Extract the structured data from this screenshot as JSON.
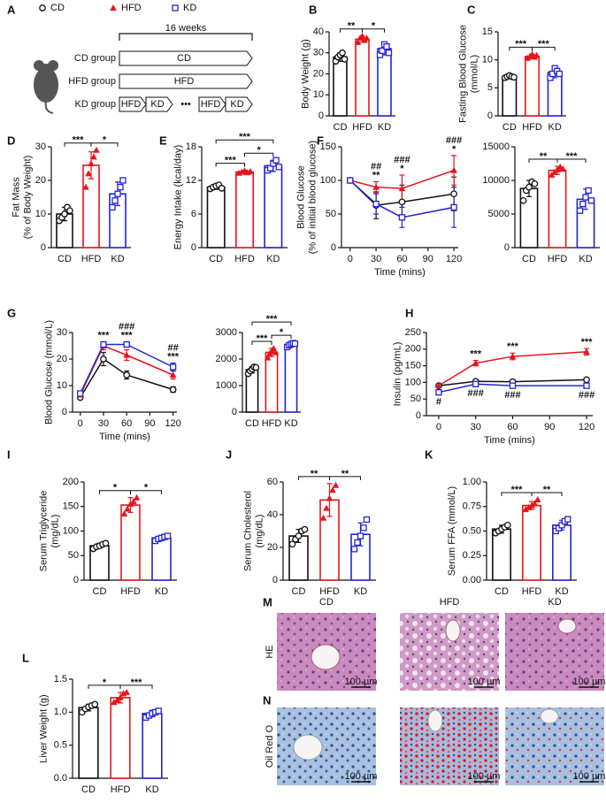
{
  "diagram": {
    "panel": "A",
    "legend": [
      {
        "name": "CD",
        "color": "#111111",
        "marker": "circle"
      },
      {
        "name": "HFD",
        "color": "#e8141c",
        "marker": "triangle"
      },
      {
        "name": "KD",
        "color": "#2323d8",
        "marker": "square"
      }
    ],
    "duration": "16 weeks",
    "groups": [
      {
        "label": "CD group",
        "color": "#111111",
        "steps": [
          {
            "label": "CD",
            "shape": "arrow"
          }
        ]
      },
      {
        "label": "HFD group",
        "color": "#e8141c",
        "steps": [
          {
            "label": "HFD",
            "shape": "arrow"
          }
        ]
      },
      {
        "label": "KD group",
        "color": "#2323d8",
        "steps": [
          {
            "label": "HFD",
            "shape": "arrow"
          },
          {
            "label": "KD",
            "shape": "arrow"
          },
          {
            "label": "•••",
            "shape": "text"
          },
          {
            "label": "HFD",
            "shape": "arrow"
          },
          {
            "label": "KD",
            "shape": "arrow"
          }
        ]
      }
    ]
  },
  "histology": {
    "panels": [
      "M",
      "N"
    ],
    "rows": [
      "HE",
      "Oil Red O"
    ],
    "columns": [
      "CD",
      "HFD",
      "KD"
    ],
    "scale_bar": "100 µm"
  },
  "chart_data": [
    {
      "type": "bar",
      "panel": "B",
      "ylabel": [
        "Body Weight (g)"
      ],
      "categories": [
        "CD",
        "HFD",
        "KD"
      ],
      "colors": [
        "#111111",
        "#e8141c",
        "#2323d8"
      ],
      "markers": [
        "circle",
        "triangle",
        "square"
      ],
      "values": [
        28,
        36.5,
        32
      ],
      "errors": [
        2,
        1.5,
        3
      ],
      "points": [
        [
          26,
          28,
          29,
          30,
          27
        ],
        [
          35,
          37,
          38,
          36,
          37
        ],
        [
          29,
          31,
          34,
          33,
          30
        ]
      ],
      "ylim": [
        0,
        40
      ],
      "yticks": [
        0,
        10,
        20,
        30,
        40
      ],
      "significance": [
        {
          "pair": [
            "CD",
            "HFD"
          ],
          "label": "**"
        },
        {
          "pair": [
            "HFD",
            "KD"
          ],
          "label": "*"
        }
      ]
    },
    {
      "type": "bar",
      "panel": "C",
      "ylabel": [
        "Fasting Blood Glucose",
        "(mmol/L)"
      ],
      "categories": [
        "CD",
        "HFD",
        "KD"
      ],
      "colors": [
        "#111111",
        "#e8141c",
        "#2323d8"
      ],
      "markers": [
        "circle",
        "triangle",
        "square"
      ],
      "values": [
        7,
        10.6,
        7.8
      ],
      "errors": [
        0.3,
        0.4,
        1
      ],
      "points": [
        [
          6.8,
          7,
          7.2,
          7,
          6.9
        ],
        [
          10.3,
          10.6,
          11,
          10.5,
          10.8
        ],
        [
          6.8,
          7.5,
          8.5,
          8,
          7.5
        ]
      ],
      "ylim": [
        0,
        15
      ],
      "yticks": [
        0,
        5,
        10,
        15
      ],
      "significance": [
        {
          "pair": [
            "CD",
            "HFD"
          ],
          "label": "***"
        },
        {
          "pair": [
            "HFD",
            "KD"
          ],
          "label": "***"
        }
      ]
    },
    {
      "type": "bar",
      "panel": "D",
      "ylabel": [
        "Fat Mass",
        "(% of Body Weight)"
      ],
      "categories": [
        "CD",
        "HFD",
        "KD"
      ],
      "colors": [
        "#111111",
        "#e8141c",
        "#2323d8"
      ],
      "markers": [
        "circle",
        "triangle",
        "square"
      ],
      "values": [
        10,
        24.5,
        16
      ],
      "errors": [
        2,
        4,
        3.5
      ],
      "points": [
        [
          8,
          9,
          10,
          12,
          11
        ],
        [
          18,
          22,
          25,
          27,
          29
        ],
        [
          12,
          14,
          16,
          18,
          20
        ]
      ],
      "ylim": [
        0,
        30
      ],
      "yticks": [
        0,
        10,
        20,
        30
      ],
      "significance": [
        {
          "pair": [
            "CD",
            "HFD"
          ],
          "label": "***"
        },
        {
          "pair": [
            "HFD",
            "KD"
          ],
          "label": "*"
        }
      ]
    },
    {
      "type": "bar",
      "panel": "E",
      "ylabel": [
        "Energy Intake (kcal/day)"
      ],
      "categories": [
        "CD",
        "HFD",
        "KD"
      ],
      "colors": [
        "#111111",
        "#e8141c",
        "#2323d8"
      ],
      "markers": [
        "circle",
        "triangle",
        "square"
      ],
      "values": [
        10.8,
        13.5,
        14.6
      ],
      "errors": [
        0.4,
        0.3,
        1
      ],
      "points": [
        [
          10.5,
          10.8,
          11,
          11.2,
          10.6
        ],
        [
          13.3,
          13.5,
          13.7,
          13.4,
          13.6
        ],
        [
          13.8,
          14.2,
          15,
          15.6,
          14.4
        ]
      ],
      "ylim": [
        0,
        18
      ],
      "yticks": [
        0,
        6,
        12,
        18
      ],
      "significance": [
        {
          "pair": [
            "CD",
            "HFD"
          ],
          "label": "***"
        },
        {
          "pair": [
            "HFD",
            "KD"
          ],
          "label": "*"
        },
        {
          "pair": [
            "CD",
            "KD"
          ],
          "label": "***"
        }
      ]
    },
    {
      "type": "line",
      "panel": "F",
      "ylabel": [
        "Blood Glucose",
        "(% of initial blood glucose)"
      ],
      "xlabel": "Time (mins)",
      "x": [
        0,
        30,
        60,
        120
      ],
      "xlim": [
        -10,
        125
      ],
      "xticks": [
        0,
        30,
        60,
        90,
        120
      ],
      "ylim": [
        0,
        150
      ],
      "yticks": [
        0,
        50,
        100,
        150
      ],
      "series": [
        {
          "color": "#111111",
          "marker": "circle",
          "values": [
            100,
            63,
            68,
            80
          ],
          "errors": [
            0,
            20,
            25,
            25
          ]
        },
        {
          "color": "#e8141c",
          "marker": "triangle",
          "values": [
            100,
            90,
            88,
            115
          ],
          "errors": [
            0,
            8,
            20,
            22
          ]
        },
        {
          "color": "#2323d8",
          "marker": "square",
          "values": [
            100,
            65,
            45,
            60
          ],
          "errors": [
            0,
            15,
            15,
            30
          ]
        }
      ],
      "annotations": [
        {
          "x": 30,
          "above": [
            "##",
            "**"
          ]
        },
        {
          "x": 60,
          "above": [
            "###",
            "*"
          ]
        },
        {
          "x": 120,
          "above": [
            "###",
            "*"
          ]
        }
      ]
    },
    {
      "type": "bar",
      "categories": [
        "CD",
        "HFD",
        "KD"
      ],
      "colors": [
        "#111111",
        "#e8141c",
        "#2323d8"
      ],
      "markers": [
        "circle",
        "triangle",
        "square"
      ],
      "values": [
        8800,
        11500,
        7200
      ],
      "errors": [
        1200,
        600,
        1500
      ],
      "points": [
        [
          7000,
          8500,
          9000,
          9800,
          9500
        ],
        [
          10800,
          11200,
          11600,
          12000,
          11700
        ],
        [
          5500,
          6500,
          7500,
          8500,
          7000
        ]
      ],
      "ylim": [
        0,
        15000
      ],
      "yticks": [
        0,
        5000,
        10000,
        15000
      ],
      "significance": [
        {
          "pair": [
            "CD",
            "HFD"
          ],
          "label": "**"
        },
        {
          "pair": [
            "HFD",
            "KD"
          ],
          "label": "***"
        }
      ]
    },
    {
      "type": "line",
      "panel": "G",
      "ylabel": [
        "Blood Glucose (mmol/L)"
      ],
      "xlabel": "Time (mins)",
      "x": [
        0,
        30,
        60,
        120
      ],
      "xlim": [
        -10,
        125
      ],
      "xticks": [
        0,
        30,
        60,
        90,
        120
      ],
      "ylim": [
        0,
        30
      ],
      "yticks": [
        0,
        10,
        20,
        30
      ],
      "series": [
        {
          "color": "#111111",
          "marker": "circle",
          "values": [
            5.5,
            20,
            14,
            8.5
          ],
          "errors": [
            0.5,
            2.5,
            1.5,
            1
          ]
        },
        {
          "color": "#e8141c",
          "marker": "triangle",
          "values": [
            6.5,
            25,
            21.5,
            14
          ],
          "errors": [
            0.5,
            1.5,
            2,
            1.5
          ]
        },
        {
          "color": "#2323d8",
          "marker": "square",
          "values": [
            7,
            25.5,
            25.5,
            17
          ],
          "errors": [
            0.5,
            1,
            1,
            1.5
          ]
        }
      ],
      "annotations": [
        {
          "x": 30,
          "above": [
            "***"
          ]
        },
        {
          "x": 60,
          "above": [
            "###",
            "***"
          ]
        },
        {
          "x": 120,
          "above": [
            "##",
            "***"
          ]
        }
      ]
    },
    {
      "type": "bar",
      "categories": [
        "CD",
        "HFD",
        "KD"
      ],
      "colors": [
        "#111111",
        "#e8141c",
        "#2323d8"
      ],
      "markers": [
        "circle",
        "triangle",
        "square"
      ],
      "values": [
        1600,
        2250,
        2550
      ],
      "errors": [
        120,
        150,
        80
      ],
      "points": [
        [
          1450,
          1550,
          1620,
          1700,
          1680
        ],
        [
          2050,
          2200,
          2300,
          2400,
          2250
        ],
        [
          2450,
          2520,
          2560,
          2600,
          2580
        ]
      ],
      "ylim": [
        0,
        3000
      ],
      "yticks": [
        0,
        1000,
        2000,
        3000
      ],
      "significance": [
        {
          "pair": [
            "CD",
            "HFD"
          ],
          "label": "***"
        },
        {
          "pair": [
            "HFD",
            "KD"
          ],
          "label": "*"
        },
        {
          "pair": [
            "CD",
            "KD"
          ],
          "label": "***"
        }
      ]
    },
    {
      "type": "line",
      "panel": "H",
      "ylabel": [
        "Insulin (pg/mL)"
      ],
      "xlabel": "Time (mins)",
      "x": [
        0,
        30,
        60,
        120
      ],
      "xlim": [
        -10,
        125
      ],
      "xticks": [
        0,
        30,
        60,
        90,
        120
      ],
      "ylim": [
        0,
        250
      ],
      "yticks": [
        0,
        50,
        100,
        150,
        200,
        250
      ],
      "series": [
        {
          "color": "#111111",
          "marker": "circle",
          "values": [
            90,
            103,
            102,
            108
          ],
          "errors": [
            5,
            5,
            5,
            5
          ]
        },
        {
          "color": "#e8141c",
          "marker": "triangle",
          "values": [
            90,
            158,
            178,
            192
          ],
          "errors": [
            5,
            8,
            10,
            10
          ]
        },
        {
          "color": "#2323d8",
          "marker": "square",
          "values": [
            70,
            95,
            90,
            90
          ],
          "errors": [
            5,
            5,
            5,
            5
          ]
        }
      ],
      "annotations": [
        {
          "x": 0,
          "below": [
            "#"
          ]
        },
        {
          "x": 30,
          "above": [
            "***"
          ],
          "below": [
            "###"
          ]
        },
        {
          "x": 60,
          "above": [
            "***"
          ],
          "below": [
            "###"
          ]
        },
        {
          "x": 120,
          "above": [
            "***"
          ],
          "below": [
            "###"
          ]
        }
      ]
    },
    {
      "type": "bar",
      "panel": "I",
      "ylabel": [
        "Serum Triglyceride",
        "(mg/dL)"
      ],
      "categories": [
        "CD",
        "HFD",
        "KD"
      ],
      "colors": [
        "#111111",
        "#e8141c",
        "#2323d8"
      ],
      "markers": [
        "circle",
        "triangle",
        "square"
      ],
      "values": [
        70,
        153,
        86
      ],
      "errors": [
        5,
        15,
        5
      ],
      "points": [
        [
          64,
          68,
          70,
          73,
          75
        ],
        [
          135,
          145,
          155,
          160,
          168
        ],
        [
          80,
          84,
          86,
          88,
          90
        ]
      ],
      "ylim": [
        0,
        200
      ],
      "yticks": [
        0,
        50,
        100,
        150,
        200
      ],
      "significance": [
        {
          "pair": [
            "CD",
            "HFD"
          ],
          "label": "*"
        },
        {
          "pair": [
            "HFD",
            "KD"
          ],
          "label": "*"
        }
      ]
    },
    {
      "type": "bar",
      "panel": "J",
      "ylabel": [
        "Serum Cholesterol",
        "(mg/dL)"
      ],
      "categories": [
        "CD",
        "HFD",
        "KD"
      ],
      "colors": [
        "#111111",
        "#e8141c",
        "#2323d8"
      ],
      "markers": [
        "circle",
        "triangle",
        "square"
      ],
      "values": [
        27,
        49,
        28
      ],
      "errors": [
        4,
        10,
        7
      ],
      "points": [
        [
          22,
          25,
          27,
          30,
          31
        ],
        [
          38,
          44,
          50,
          55,
          58
        ],
        [
          19,
          23,
          27,
          32,
          37
        ]
      ],
      "ylim": [
        0,
        60
      ],
      "yticks": [
        0,
        20,
        40,
        60
      ],
      "significance": [
        {
          "pair": [
            "CD",
            "HFD"
          ],
          "label": "**"
        },
        {
          "pair": [
            "HFD",
            "KD"
          ],
          "label": "**"
        }
      ]
    },
    {
      "type": "bar",
      "panel": "K",
      "ylabel": [
        "Serum FFA (mmol/L)"
      ],
      "categories": [
        "CD",
        "HFD",
        "KD"
      ],
      "colors": [
        "#111111",
        "#e8141c",
        "#2323d8"
      ],
      "markers": [
        "circle",
        "triangle",
        "square"
      ],
      "values": [
        0.52,
        0.76,
        0.56
      ],
      "errors": [
        0.04,
        0.04,
        0.05
      ],
      "points": [
        [
          0.48,
          0.5,
          0.52,
          0.54,
          0.56
        ],
        [
          0.72,
          0.74,
          0.76,
          0.78,
          0.82
        ],
        [
          0.5,
          0.53,
          0.56,
          0.6,
          0.62
        ]
      ],
      "ylim": [
        0,
        1
      ],
      "yticks": [
        {
          "value": 0,
          "label": "0.00"
        },
        {
          "value": 0.25,
          "label": "0.25"
        },
        {
          "value": 0.5,
          "label": "0.50"
        },
        {
          "value": 0.75,
          "label": "0.75"
        },
        {
          "value": 1,
          "label": "1.00"
        }
      ],
      "significance": [
        {
          "pair": [
            "CD",
            "HFD"
          ],
          "label": "***"
        },
        {
          "pair": [
            "HFD",
            "KD"
          ],
          "label": "**"
        }
      ]
    },
    {
      "type": "bar",
      "panel": "L",
      "ylabel": [
        "Liver Weight (g)"
      ],
      "categories": [
        "CD",
        "HFD",
        "KD"
      ],
      "colors": [
        "#111111",
        "#e8141c",
        "#2323d8"
      ],
      "markers": [
        "circle",
        "triangle",
        "square"
      ],
      "values": [
        1.07,
        1.22,
        0.98
      ],
      "errors": [
        0.05,
        0.08,
        0.05
      ],
      "points": [
        [
          1.0,
          1.05,
          1.08,
          1.1,
          1.12
        ],
        [
          1.15,
          1.18,
          1.22,
          1.28,
          1.3
        ],
        [
          0.92,
          0.95,
          0.98,
          1.0,
          1.02
        ]
      ],
      "ylim": [
        0,
        1.5
      ],
      "yticks": [
        {
          "value": 0,
          "label": "0.0"
        },
        {
          "value": 0.5,
          "label": "0.5"
        },
        {
          "value": 1,
          "label": "1.0"
        },
        {
          "value": 1.5,
          "label": "1.5"
        }
      ],
      "significance": [
        {
          "pair": [
            "CD",
            "HFD"
          ],
          "label": "*"
        },
        {
          "pair": [
            "HFD",
            "KD"
          ],
          "label": "***"
        }
      ]
    }
  ]
}
